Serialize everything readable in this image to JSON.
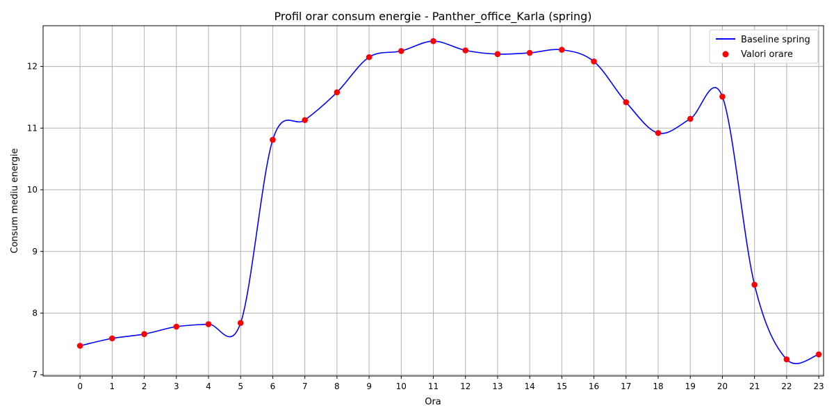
{
  "chart_data": {
    "type": "line",
    "title": "Profil orar consum energie - Panther_office_Karla (spring)",
    "xlabel": "Ora",
    "ylabel": "Consum mediu energie",
    "x": [
      0,
      1,
      2,
      3,
      4,
      5,
      6,
      7,
      8,
      9,
      10,
      11,
      12,
      13,
      14,
      15,
      16,
      17,
      18,
      19,
      20,
      21,
      22,
      23
    ],
    "x_tick_labels": [
      "0",
      "1",
      "2",
      "3",
      "4",
      "5",
      "6",
      "7",
      "8",
      "9",
      "10",
      "11",
      "12",
      "13",
      "14",
      "15",
      "16",
      "17",
      "18",
      "19",
      "20",
      "21",
      "22",
      "23"
    ],
    "y_ticks": [
      7,
      8,
      9,
      10,
      11,
      12
    ],
    "y_tick_labels": [
      "7",
      "8",
      "9",
      "10",
      "11",
      "12"
    ],
    "xlim": [
      -1.15,
      23.15
    ],
    "ylim": [
      6.98,
      12.66
    ],
    "grid": true,
    "legend_position": "top-right",
    "series": [
      {
        "name": "Baseline spring",
        "kind": "line",
        "color": "#0000ff",
        "values": [
          7.47,
          7.59,
          7.66,
          7.78,
          7.82,
          7.84,
          10.81,
          11.13,
          11.58,
          12.15,
          12.25,
          12.41,
          12.26,
          12.2,
          12.22,
          12.27,
          12.08,
          11.42,
          10.92,
          11.15,
          11.51,
          8.46,
          7.25,
          7.33
        ]
      },
      {
        "name": "Valori orare",
        "kind": "scatter",
        "color": "#ff0000",
        "values": [
          7.47,
          7.59,
          7.66,
          7.78,
          7.82,
          7.84,
          10.81,
          11.13,
          11.58,
          12.15,
          12.25,
          12.41,
          12.26,
          12.2,
          12.22,
          12.27,
          12.08,
          11.42,
          10.92,
          11.15,
          11.51,
          8.46,
          7.25,
          7.33
        ]
      }
    ]
  }
}
